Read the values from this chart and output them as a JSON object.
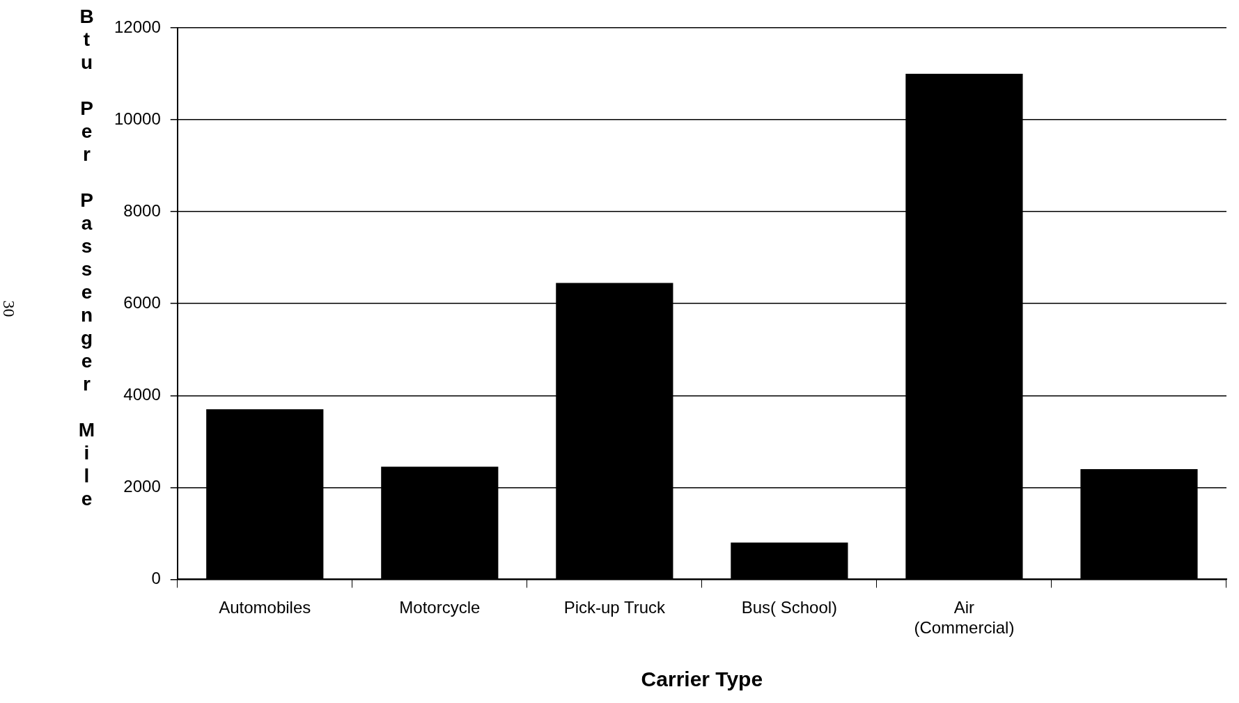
{
  "chart_data": {
    "type": "bar",
    "xlabel": "Carrier Type",
    "ylabel": "Btu Per Passenger Mile",
    "categories": [
      "Automobiles",
      "Motorcycle",
      "Pick-up Truck",
      "Bus( School)",
      "Air (Commercial)",
      null
    ],
    "values": [
      3700,
      2450,
      6450,
      800,
      11000,
      2400
    ],
    "color": "#000000",
    "ylim": [
      0,
      12000
    ],
    "yticks": [
      0,
      2000,
      4000,
      6000,
      8000,
      10000,
      12000
    ],
    "grid": "y",
    "annotations": [
      "30"
    ]
  }
}
